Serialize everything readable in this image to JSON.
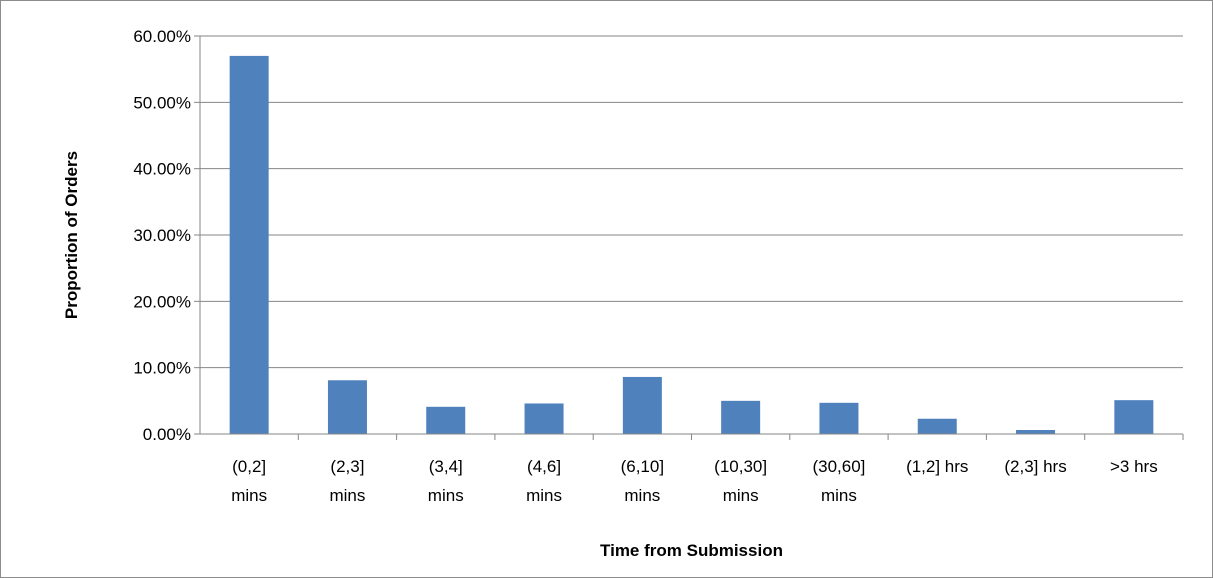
{
  "chart_data": {
    "type": "bar",
    "title": "",
    "xlabel": "Time from Submission",
    "ylabel": "Proportion of Orders",
    "ylim": [
      0,
      0.6
    ],
    "y_ticks": [
      "0.00%",
      "10.00%",
      "20.00%",
      "30.00%",
      "40.00%",
      "50.00%",
      "60.00%"
    ],
    "y_tick_values": [
      0,
      0.1,
      0.2,
      0.3,
      0.4,
      0.5,
      0.6
    ],
    "grid": true,
    "legend": "none",
    "bar_color": "#4f81bd",
    "categories": [
      [
        "(0,2]",
        "mins"
      ],
      [
        "(2,3]",
        "mins"
      ],
      [
        "(3,4]",
        "mins"
      ],
      [
        "(4,6]",
        "mins"
      ],
      [
        "(6,10]",
        "mins"
      ],
      [
        "(10,30]",
        "mins"
      ],
      [
        "(30,60]",
        "mins"
      ],
      [
        "(1,2] hrs"
      ],
      [
        "(2,3] hrs"
      ],
      [
        ">3 hrs"
      ]
    ],
    "values": [
      0.57,
      0.081,
      0.041,
      0.046,
      0.086,
      0.05,
      0.047,
      0.023,
      0.006,
      0.051
    ]
  }
}
